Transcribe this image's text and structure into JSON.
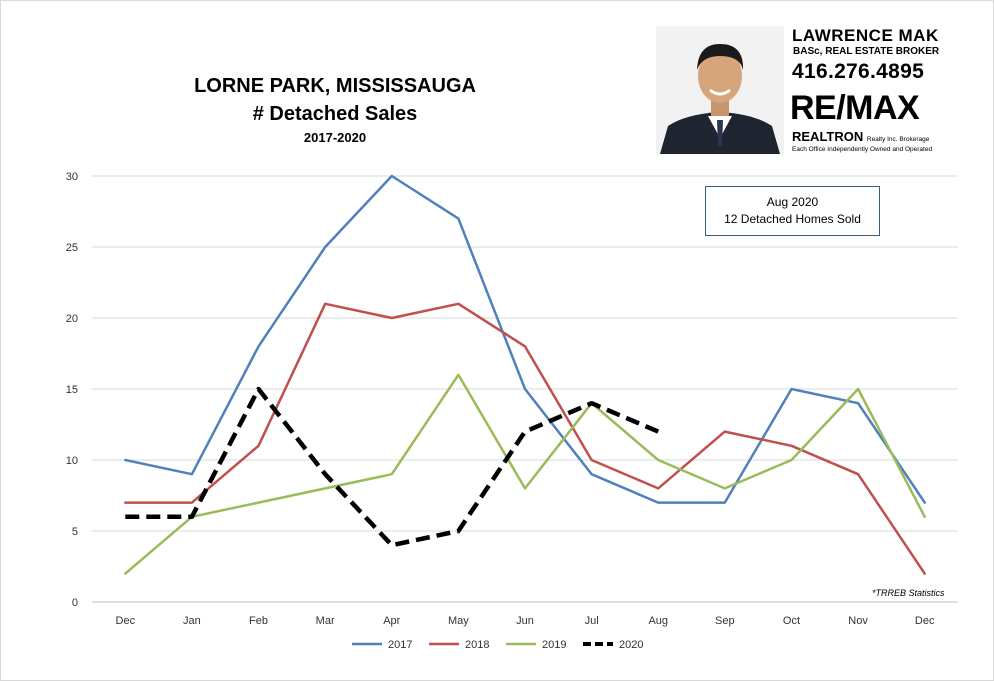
{
  "title": {
    "line1": "LORNE PARK, MISSISSAUGA",
    "line2": "# Detached Sales",
    "line3": "2017-2020"
  },
  "agent": {
    "name": "LAWRENCE MAK",
    "credentials": "BASc, REAL ESTATE BROKER",
    "phone": "416.276.4895",
    "brand": "RE/MAX",
    "brokerage": "REALTRON",
    "brokerage_sub": "Realty Inc. Brokerage",
    "office_note": "Each Office Independently Owned and Operated"
  },
  "annotation": {
    "line1": "Aug 2020",
    "line2": "12 Detached Homes Sold"
  },
  "source_note": "*TRREB Statistics",
  "chart_data": {
    "type": "line",
    "categories": [
      "Dec",
      "Jan",
      "Feb",
      "Mar",
      "Apr",
      "May",
      "Jun",
      "Jul",
      "Aug",
      "Sep",
      "Oct",
      "Nov",
      "Dec"
    ],
    "ylim": [
      0,
      30
    ],
    "yticks": [
      0,
      5,
      10,
      15,
      20,
      25,
      30
    ],
    "grid": true,
    "legend_position": "bottom",
    "series": [
      {
        "name": "2017",
        "color": "#4f81bd",
        "dashed": false,
        "values": [
          10,
          9,
          18,
          25,
          30,
          27,
          15,
          9,
          7,
          7,
          15,
          14,
          7
        ]
      },
      {
        "name": "2018",
        "color": "#c0504d",
        "dashed": false,
        "values": [
          7,
          7,
          11,
          21,
          20,
          21,
          18,
          10,
          8,
          12,
          11,
          9,
          2
        ]
      },
      {
        "name": "2019",
        "color": "#9bbb59",
        "dashed": false,
        "values": [
          2,
          6,
          7,
          8,
          9,
          16,
          8,
          14,
          10,
          8,
          10,
          15,
          6
        ]
      },
      {
        "name": "2020",
        "color": "#000000",
        "dashed": true,
        "values": [
          6,
          6,
          15,
          9,
          4,
          5,
          12,
          14,
          12,
          null,
          null,
          null,
          null
        ]
      }
    ]
  }
}
